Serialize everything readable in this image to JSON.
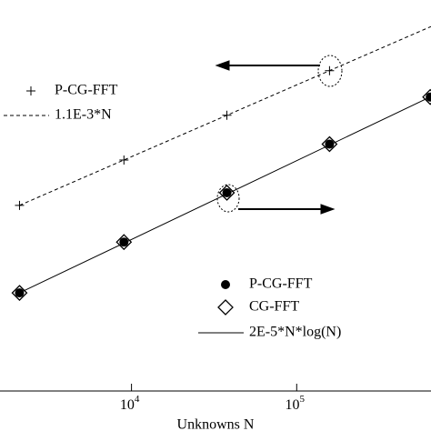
{
  "chart_data": {
    "type": "line",
    "x_label": "Unknowns N",
    "xscale": "log",
    "yscale": "log",
    "xlim": [
      1600,
      650000
    ],
    "ylim": [
      0.006,
      1675
    ],
    "xticks": [
      {
        "value": 10000,
        "label": "10",
        "exponent": "4"
      },
      {
        "value": 100000,
        "label": "10",
        "exponent": "5"
      }
    ],
    "series": [
      {
        "name": "P-CG-FFT",
        "marker": "plus",
        "color": "#000000",
        "x": [
          2100,
          9000,
          37800,
          158000
        ],
        "values": [
          2.31,
          9.9,
          41.6,
          173.8
        ]
      },
      {
        "name": "1.1E-3*N",
        "line": "dashed",
        "color": "#000000",
        "x": [
          2100,
          650000
        ],
        "values": [
          2.31,
          715
        ]
      },
      {
        "name": "P-CG-FFT",
        "marker": "dot",
        "color": "#000000",
        "x": [
          2100,
          9000,
          37800,
          158000,
          643000
        ],
        "values": [
          0.1395,
          0.712,
          3.46,
          16.46,
          74.6
        ]
      },
      {
        "name": "CG-FFT",
        "marker": "diamond",
        "color": "#000000",
        "x": [
          2100,
          9000,
          37800,
          158000,
          643000
        ],
        "values": [
          0.1395,
          0.712,
          3.46,
          16.46,
          74.6
        ]
      },
      {
        "name": "2E-5*N*log(N)",
        "line": "solid",
        "color": "#000000",
        "x": [
          2100,
          650000
        ],
        "values": [
          0.1395,
          75.6
        ]
      }
    ]
  }
}
